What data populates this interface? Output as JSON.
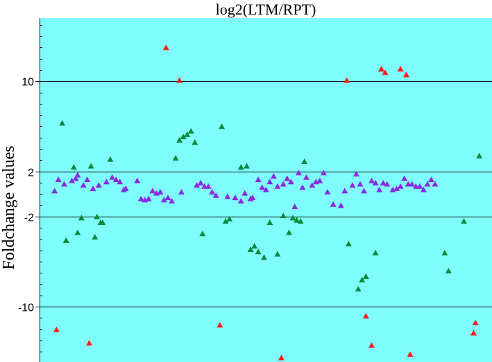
{
  "chart_data": {
    "type": "scatter",
    "title": "log2(LTM/RPT)",
    "ylabel": "Foldchange values",
    "xlabel": "",
    "ylim": [
      -14.9,
      15.6
    ],
    "yticks": [
      {
        "value": 10,
        "label": "10"
      },
      {
        "value": 2,
        "label": "2"
      },
      {
        "value": -2,
        "label": "-2"
      },
      {
        "value": -10,
        "label": "-10"
      }
    ],
    "gridlines_at": [
      10,
      2,
      -2,
      -10
    ],
    "background_color": "#7ffcfc",
    "marker": "triangle",
    "series": [
      {
        "color": "#ff1a1a",
        "points": [
          [
            7,
            -12
          ],
          [
            24,
            -13.2
          ],
          [
            64,
            13
          ],
          [
            71,
            10.1
          ],
          [
            92,
            -11.6
          ],
          [
            124,
            -14.5
          ],
          [
            158,
            10.1
          ],
          [
            176,
            11.1
          ],
          [
            178,
            10.8
          ],
          [
            186,
            11.1
          ],
          [
            189,
            10.6
          ],
          [
            168,
            -10.8
          ],
          [
            171,
            -13.4
          ],
          [
            191,
            -14.2
          ],
          [
            224,
            -12.3
          ],
          [
            225,
            -11.4
          ]
        ]
      },
      {
        "color": "#0d8a3a",
        "points": [
          [
            10,
            6.3
          ],
          [
            12,
            -4.1
          ],
          [
            16,
            2.4
          ],
          [
            18,
            -3.4
          ],
          [
            20,
            -2.1
          ],
          [
            25,
            2.5
          ],
          [
            27,
            -3.8
          ],
          [
            28,
            -2
          ],
          [
            30,
            -2.5
          ],
          [
            31,
            -2.5
          ],
          [
            35,
            3.1
          ],
          [
            69,
            3.2
          ],
          [
            71,
            4.8
          ],
          [
            73,
            5.1
          ],
          [
            75,
            5.3
          ],
          [
            77,
            5.6
          ],
          [
            79,
            4.6
          ],
          [
            83,
            -3.5
          ],
          [
            93,
            6
          ],
          [
            95,
            -2.4
          ],
          [
            97,
            -2.2
          ],
          [
            103,
            2.4
          ],
          [
            106,
            2.5
          ],
          [
            108,
            -4.9
          ],
          [
            110,
            -4.6
          ],
          [
            112,
            -5.1
          ],
          [
            115,
            -5.6
          ],
          [
            118,
            -2.5
          ],
          [
            122,
            -5.3
          ],
          [
            125,
            -1.9
          ],
          [
            128,
            -3.4
          ],
          [
            130,
            -2.1
          ],
          [
            132,
            -2.3
          ],
          [
            134,
            -2.4
          ],
          [
            136,
            2.9
          ],
          [
            159,
            -4.4
          ],
          [
            164,
            -8.4
          ],
          [
            166,
            -7.6
          ],
          [
            168,
            -7.3
          ],
          [
            173,
            -5.2
          ],
          [
            209,
            -5.2
          ],
          [
            211,
            -6.8
          ],
          [
            219,
            -2.4
          ],
          [
            227,
            3.4
          ]
        ]
      },
      {
        "color": "#8a2be2",
        "points": [
          [
            6,
            0.3
          ],
          [
            8,
            1.3
          ],
          [
            11,
            0.9
          ],
          [
            15,
            1.2
          ],
          [
            17,
            1.4
          ],
          [
            18,
            1.7
          ],
          [
            21,
            0.8
          ],
          [
            23,
            1.3
          ],
          [
            26,
            0.5
          ],
          [
            29,
            0.8
          ],
          [
            33,
            1.1
          ],
          [
            36,
            1.5
          ],
          [
            38,
            1.3
          ],
          [
            40,
            1.1
          ],
          [
            42,
            0.4
          ],
          [
            43,
            0.5
          ],
          [
            49,
            1.2
          ],
          [
            51,
            -0.4
          ],
          [
            53,
            -0.5
          ],
          [
            55,
            -0.4
          ],
          [
            57,
            0.3
          ],
          [
            59,
            0.1
          ],
          [
            61,
            0.2
          ],
          [
            63,
            -0.5
          ],
          [
            65,
            -0.3
          ],
          [
            67,
            -0.6
          ],
          [
            72,
            0.2
          ],
          [
            80,
            0.8
          ],
          [
            82,
            1
          ],
          [
            84,
            0.7
          ],
          [
            86,
            0.7
          ],
          [
            88,
            0.2
          ],
          [
            90,
            -0.1
          ],
          [
            96,
            -0.2
          ],
          [
            100,
            -0.3
          ],
          [
            103,
            -0.6
          ],
          [
            105,
            0.1
          ],
          [
            108,
            -0.4
          ],
          [
            109,
            -0.3
          ],
          [
            112,
            1.3
          ],
          [
            114,
            0.6
          ],
          [
            116,
            0.4
          ],
          [
            118,
            1.1
          ],
          [
            120,
            1.6
          ],
          [
            122,
            0.7
          ],
          [
            125,
            0.9
          ],
          [
            127,
            1.4
          ],
          [
            129,
            1.1
          ],
          [
            131,
            -1.1
          ],
          [
            133,
            1.9
          ],
          [
            135,
            0.6
          ],
          [
            137,
            1.5
          ],
          [
            140,
            0.8
          ],
          [
            142,
            1.1
          ],
          [
            144,
            1.2
          ],
          [
            146,
            1.9
          ],
          [
            148,
            0.2
          ],
          [
            151,
            -0.9
          ],
          [
            155,
            -1.0
          ],
          [
            157,
            0.3
          ],
          [
            161,
            0.8
          ],
          [
            163,
            1.8
          ],
          [
            165,
            0.9
          ],
          [
            167,
            0.3
          ],
          [
            171,
            1.2
          ],
          [
            173,
            1
          ],
          [
            175,
            0.4
          ],
          [
            177,
            1
          ],
          [
            179,
            0.9
          ],
          [
            182,
            0.4
          ],
          [
            184,
            0.5
          ],
          [
            186,
            0.7
          ],
          [
            188,
            1.4
          ],
          [
            190,
            0.9
          ],
          [
            192,
            0.9
          ],
          [
            194,
            0.7
          ],
          [
            196,
            0.7
          ],
          [
            198,
            0.4
          ],
          [
            200,
            0.9
          ],
          [
            202,
            1.3
          ],
          [
            204,
            0.9
          ]
        ]
      }
    ]
  }
}
